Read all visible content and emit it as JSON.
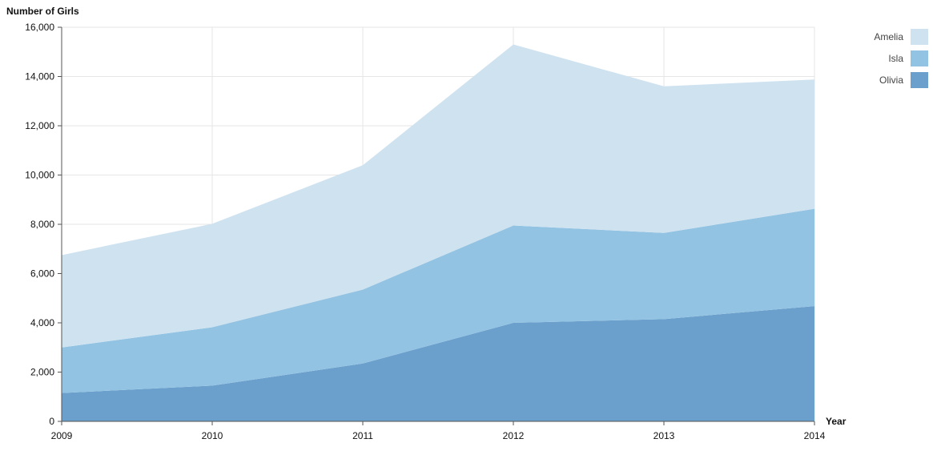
{
  "chart_data": {
    "type": "area",
    "stacked": true,
    "y_axis_title": "Number of Girls",
    "x_axis_title": "Year",
    "x": [
      "2009",
      "2010",
      "2011",
      "2012",
      "2013",
      "2014"
    ],
    "ylim": [
      0,
      16000
    ],
    "y_ticks": [
      0,
      2000,
      4000,
      6000,
      8000,
      10000,
      12000,
      14000,
      16000
    ],
    "y_tick_labels": [
      "0",
      "2,000",
      "4,000",
      "6,000",
      "8,000",
      "10,000",
      "12,000",
      "14,000",
      "16,000"
    ],
    "grid": true,
    "legend_position": "top-right",
    "series": [
      {
        "name": "Olivia",
        "color": "#6b9fcc",
        "values": [
          1150,
          1450,
          2350,
          4000,
          4150,
          4680
        ]
      },
      {
        "name": "Isla",
        "color": "#93c3e3",
        "values": [
          1850,
          2370,
          3000,
          3950,
          3500,
          3950
        ]
      },
      {
        "name": "Amelia",
        "color": "#cfe2f0",
        "values": [
          3750,
          4200,
          5050,
          7350,
          5950,
          5250
        ]
      }
    ],
    "legend_order": [
      "Amelia",
      "Isla",
      "Olivia"
    ]
  }
}
